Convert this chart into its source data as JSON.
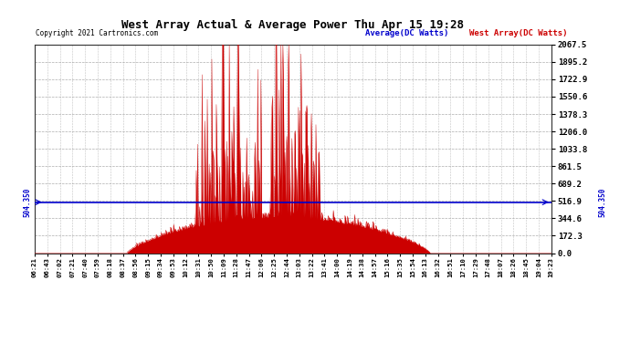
{
  "title": "West Array Actual & Average Power Thu Apr 15 19:28",
  "copyright": "Copyright 2021 Cartronics.com",
  "legend_avg": "Average(DC Watts)",
  "legend_west": "West Array(DC Watts)",
  "avg_value": 504.35,
  "ymin": 0.0,
  "ymax": 2067.5,
  "yticks": [
    0.0,
    172.3,
    344.6,
    516.9,
    689.2,
    861.5,
    1033.8,
    1206.0,
    1378.3,
    1550.6,
    1722.9,
    1895.2,
    2067.5
  ],
  "left_ytick_avg": "504.350",
  "right_ytick_avg": "504.350",
  "background_color": "#ffffff",
  "fill_color": "#cc0000",
  "avg_line_color": "#0000cc",
  "grid_color": "#999999",
  "title_color": "#000000",
  "copyright_color": "#000000",
  "legend_avg_color": "#0000cc",
  "legend_west_color": "#cc0000",
  "xtick_labels": [
    "06:21",
    "06:43",
    "07:02",
    "07:21",
    "07:40",
    "07:59",
    "08:18",
    "08:37",
    "08:56",
    "09:15",
    "09:34",
    "09:53",
    "10:12",
    "10:31",
    "10:50",
    "11:09",
    "11:28",
    "11:47",
    "12:06",
    "12:25",
    "12:44",
    "13:03",
    "13:22",
    "13:41",
    "14:00",
    "14:19",
    "14:38",
    "14:57",
    "15:16",
    "15:35",
    "15:54",
    "16:13",
    "16:32",
    "16:51",
    "17:10",
    "17:29",
    "17:48",
    "18:07",
    "18:26",
    "18:45",
    "19:04",
    "19:23"
  ]
}
